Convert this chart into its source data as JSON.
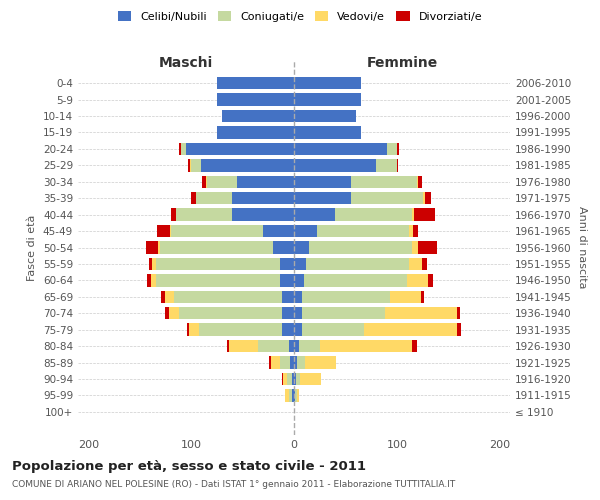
{
  "age_groups": [
    "100+",
    "95-99",
    "90-94",
    "85-89",
    "80-84",
    "75-79",
    "70-74",
    "65-69",
    "60-64",
    "55-59",
    "50-54",
    "45-49",
    "40-44",
    "35-39",
    "30-34",
    "25-29",
    "20-24",
    "15-19",
    "10-14",
    "5-9",
    "0-4"
  ],
  "birth_years": [
    "≤ 1910",
    "1911-1915",
    "1916-1920",
    "1921-1925",
    "1926-1930",
    "1931-1935",
    "1936-1940",
    "1941-1945",
    "1946-1950",
    "1951-1955",
    "1956-1960",
    "1961-1965",
    "1966-1970",
    "1971-1975",
    "1976-1980",
    "1981-1985",
    "1986-1990",
    "1991-1995",
    "1996-2000",
    "2001-2005",
    "2006-2010"
  ],
  "males": {
    "celibe": [
      0,
      2,
      2,
      4,
      5,
      12,
      12,
      12,
      14,
      14,
      20,
      30,
      60,
      60,
      55,
      90,
      105,
      75,
      70,
      75,
      75
    ],
    "coniugato": [
      0,
      3,
      5,
      10,
      30,
      80,
      100,
      105,
      120,
      120,
      110,
      90,
      55,
      35,
      30,
      10,
      5,
      0,
      0,
      0,
      0
    ],
    "vedovo": [
      0,
      4,
      4,
      8,
      28,
      10,
      10,
      8,
      5,
      4,
      2,
      1,
      0,
      0,
      1,
      1,
      0,
      0,
      0,
      0,
      0
    ],
    "divorziato": [
      0,
      0,
      1,
      2,
      2,
      2,
      3,
      4,
      4,
      3,
      12,
      12,
      5,
      5,
      3,
      2,
      2,
      0,
      0,
      0,
      0
    ]
  },
  "females": {
    "nubile": [
      0,
      1,
      2,
      3,
      5,
      8,
      8,
      8,
      10,
      12,
      15,
      22,
      40,
      55,
      55,
      80,
      90,
      65,
      60,
      65,
      65
    ],
    "coniugata": [
      0,
      2,
      4,
      8,
      20,
      60,
      80,
      85,
      100,
      100,
      100,
      90,
      75,
      70,
      65,
      20,
      10,
      0,
      0,
      0,
      0
    ],
    "vedova": [
      0,
      2,
      20,
      30,
      90,
      90,
      70,
      30,
      20,
      12,
      6,
      4,
      2,
      2,
      1,
      0,
      0,
      0,
      0,
      0,
      0
    ],
    "divorziata": [
      0,
      0,
      0,
      0,
      5,
      4,
      3,
      3,
      5,
      5,
      18,
      5,
      20,
      6,
      3,
      1,
      2,
      0,
      0,
      0,
      0
    ]
  },
  "colors": {
    "celibe": "#4472C4",
    "coniugato": "#C5D9A0",
    "vedovo": "#FFD966",
    "divorziato": "#CC0000"
  },
  "title": "Popolazione per età, sesso e stato civile - 2011",
  "subtitle": "COMUNE DI ARIANO NEL POLESINE (RO) - Dati ISTAT 1° gennaio 2011 - Elaborazione TUTTITALIA.IT",
  "xlabel_left": "Maschi",
  "xlabel_right": "Femmine",
  "ylabel": "Fasce di età",
  "ylabel_right": "Anni di nascita",
  "xlim": 210,
  "legend_labels": [
    "Celibi/Nubili",
    "Coniugati/e",
    "Vedovi/e",
    "Divorziati/e"
  ],
  "bg_color": "#ffffff",
  "grid_color": "#cccccc"
}
